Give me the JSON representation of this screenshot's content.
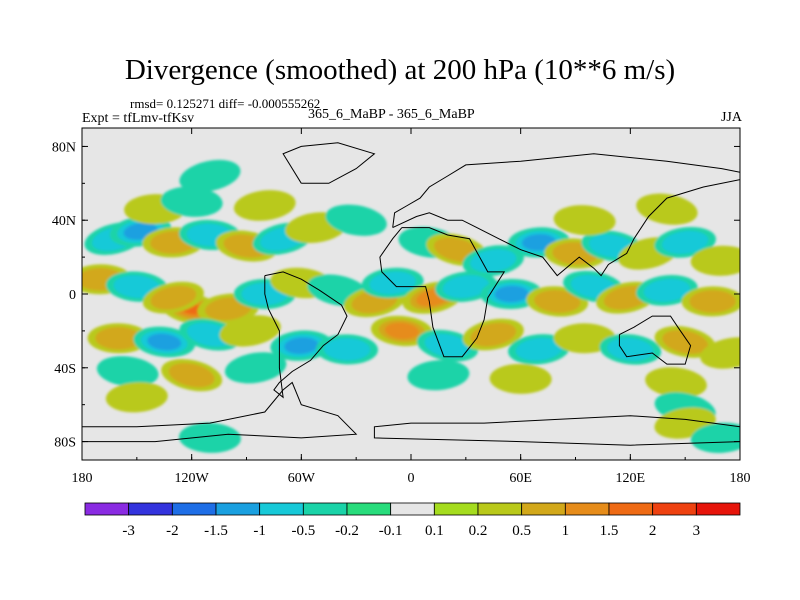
{
  "header": {
    "title": "Divergence (smoothed) at 200 hPa (10**6 m/s)",
    "stats": "rmsd= 0.125271 diff= -0.000555262",
    "experiment": "Expt = tfLmv-tfKsv",
    "cases": "365_6_MaBP - 365_6_MaBP",
    "season": "JJA"
  },
  "chart_data": {
    "type": "heatmap",
    "title": "Divergence (smoothed) at 200 hPa (10**6 m/s)",
    "projection": "cylindrical-equidistant",
    "xlim": [
      -180,
      180
    ],
    "ylim": [
      -90,
      90
    ],
    "x_ticks": [
      {
        "value": -180,
        "label": "180"
      },
      {
        "value": -120,
        "label": "120W"
      },
      {
        "value": -60,
        "label": "60W"
      },
      {
        "value": 0,
        "label": "0"
      },
      {
        "value": 60,
        "label": "60E"
      },
      {
        "value": 120,
        "label": "120E"
      },
      {
        "value": 180,
        "label": "180"
      }
    ],
    "y_ticks": [
      {
        "value": 80,
        "label": "80N"
      },
      {
        "value": 40,
        "label": "40N"
      },
      {
        "value": 0,
        "label": "0"
      },
      {
        "value": -40,
        "label": "40S"
      },
      {
        "value": -80,
        "label": "80S"
      }
    ],
    "colorbar": {
      "labels": [
        "-3",
        "-2",
        "-1.5",
        "-1",
        "-0.5",
        "-0.2",
        "-0.1",
        "0.1",
        "0.2",
        "0.5",
        "1",
        "1.5",
        "2",
        "3"
      ],
      "colors": [
        "#8a2be2",
        "#3333dd",
        "#1e6ee6",
        "#1aa0e0",
        "#17c9d8",
        "#1ad3a8",
        "#28dc7c",
        "#e6e6e6",
        "#a5dc1e",
        "#b9c91a",
        "#d2a81a",
        "#e68c1a",
        "#ee6a14",
        "#ee4110",
        "#e6140a"
      ]
    },
    "background_color": "#e6e6e6",
    "field_blobs": [
      {
        "lon": -162,
        "lat": 30,
        "value": -0.5
      },
      {
        "lon": -148,
        "lat": 34,
        "value": -1
      },
      {
        "lon": -130,
        "lat": 28,
        "value": 0.5
      },
      {
        "lon": -110,
        "lat": 32,
        "value": -0.5
      },
      {
        "lon": -90,
        "lat": 26,
        "value": 0.5
      },
      {
        "lon": -70,
        "lat": 30,
        "value": -0.5
      },
      {
        "lon": -52,
        "lat": 36,
        "value": 0.2
      },
      {
        "lon": -140,
        "lat": 46,
        "value": 0.2
      },
      {
        "lon": -120,
        "lat": 50,
        "value": -0.2
      },
      {
        "lon": -30,
        "lat": 40,
        "value": -0.2
      },
      {
        "lon": -110,
        "lat": 64,
        "value": -0.2
      },
      {
        "lon": -80,
        "lat": 48,
        "value": 0.2
      },
      {
        "lon": -170,
        "lat": 8,
        "value": 0.5
      },
      {
        "lon": -150,
        "lat": 4,
        "value": -0.5
      },
      {
        "lon": -120,
        "lat": -8,
        "value": 1.5
      },
      {
        "lon": -130,
        "lat": -2,
        "value": 0.5
      },
      {
        "lon": -100,
        "lat": -8,
        "value": 0.5
      },
      {
        "lon": -80,
        "lat": 0,
        "value": -0.5
      },
      {
        "lon": -60,
        "lat": 6,
        "value": 0.2
      },
      {
        "lon": -40,
        "lat": 2,
        "value": -0.2
      },
      {
        "lon": -20,
        "lat": -4,
        "value": 0.5
      },
      {
        "lon": -10,
        "lat": 6,
        "value": -0.5
      },
      {
        "lon": -160,
        "lat": -24,
        "value": 0.5
      },
      {
        "lon": -135,
        "lat": -26,
        "value": -1
      },
      {
        "lon": -110,
        "lat": -22,
        "value": -0.5
      },
      {
        "lon": -88,
        "lat": -20,
        "value": 0.2
      },
      {
        "lon": -60,
        "lat": -28,
        "value": -1
      },
      {
        "lon": -35,
        "lat": -30,
        "value": -0.5
      },
      {
        "lon": -155,
        "lat": -42,
        "value": -0.2
      },
      {
        "lon": -120,
        "lat": -44,
        "value": 0.5
      },
      {
        "lon": -85,
        "lat": -40,
        "value": -0.2
      },
      {
        "lon": -150,
        "lat": -56,
        "value": 0.2
      },
      {
        "lon": -110,
        "lat": -78,
        "value": -0.2
      },
      {
        "lon": 10,
        "lat": 28,
        "value": -0.2
      },
      {
        "lon": 25,
        "lat": 24,
        "value": 0.5
      },
      {
        "lon": 45,
        "lat": 18,
        "value": -0.5
      },
      {
        "lon": 70,
        "lat": 28,
        "value": -1
      },
      {
        "lon": 90,
        "lat": 22,
        "value": 0.5
      },
      {
        "lon": 110,
        "lat": 26,
        "value": -0.5
      },
      {
        "lon": 130,
        "lat": 22,
        "value": 0.2
      },
      {
        "lon": 150,
        "lat": 28,
        "value": -0.5
      },
      {
        "lon": 170,
        "lat": 18,
        "value": 0.2
      },
      {
        "lon": 95,
        "lat": 40,
        "value": 0.2
      },
      {
        "lon": 140,
        "lat": 46,
        "value": 0.2
      },
      {
        "lon": 12,
        "lat": -2,
        "value": 1
      },
      {
        "lon": 30,
        "lat": 4,
        "value": -0.5
      },
      {
        "lon": 55,
        "lat": 0,
        "value": -1
      },
      {
        "lon": 80,
        "lat": -4,
        "value": 0.5
      },
      {
        "lon": 100,
        "lat": 4,
        "value": -0.5
      },
      {
        "lon": 118,
        "lat": -2,
        "value": 0.5
      },
      {
        "lon": 140,
        "lat": 2,
        "value": -0.5
      },
      {
        "lon": 165,
        "lat": -4,
        "value": 0.5
      },
      {
        "lon": -5,
        "lat": -20,
        "value": 1
      },
      {
        "lon": 20,
        "lat": -28,
        "value": -0.5
      },
      {
        "lon": 45,
        "lat": -22,
        "value": 0.5
      },
      {
        "lon": 70,
        "lat": -30,
        "value": -0.5
      },
      {
        "lon": 95,
        "lat": -24,
        "value": 0.2
      },
      {
        "lon": 120,
        "lat": -30,
        "value": -0.5
      },
      {
        "lon": 150,
        "lat": -26,
        "value": 0.5
      },
      {
        "lon": 175,
        "lat": -32,
        "value": 0.2
      },
      {
        "lon": 15,
        "lat": -44,
        "value": -0.2
      },
      {
        "lon": 60,
        "lat": -46,
        "value": 0.2
      },
      {
        "lon": 145,
        "lat": -48,
        "value": 0.2
      },
      {
        "lon": 150,
        "lat": -62,
        "value": -0.2
      },
      {
        "lon": 150,
        "lat": -70,
        "value": 0.2
      },
      {
        "lon": 170,
        "lat": -78,
        "value": -0.2
      }
    ],
    "coastlines": [
      [
        [
          -180,
          -72
        ],
        [
          -150,
          -72
        ],
        [
          -110,
          -70
        ],
        [
          -80,
          -64
        ],
        [
          -70,
          -52
        ],
        [
          -65,
          -48
        ],
        [
          -60,
          -60
        ],
        [
          -40,
          -66
        ],
        [
          -30,
          -76
        ],
        [
          -60,
          -78
        ],
        [
          -100,
          -76
        ],
        [
          -140,
          -80
        ],
        [
          -180,
          -80
        ]
      ],
      [
        [
          -80,
          10
        ],
        [
          -70,
          12
        ],
        [
          -60,
          8
        ],
        [
          -50,
          2
        ],
        [
          -38,
          -6
        ],
        [
          -35,
          -12
        ],
        [
          -40,
          -22
        ],
        [
          -48,
          -28
        ],
        [
          -55,
          -36
        ],
        [
          -65,
          -42
        ],
        [
          -72,
          -48
        ],
        [
          -75,
          -52
        ],
        [
          -70,
          -56
        ],
        [
          -72,
          -40
        ],
        [
          -72,
          -20
        ],
        [
          -78,
          -8
        ],
        [
          -80,
          0
        ],
        [
          -80,
          10
        ]
      ],
      [
        [
          -5,
          36
        ],
        [
          10,
          36
        ],
        [
          20,
          32
        ],
        [
          32,
          30
        ],
        [
          42,
          12
        ],
        [
          51,
          12
        ],
        [
          42,
          -2
        ],
        [
          40,
          -14
        ],
        [
          36,
          -24
        ],
        [
          28,
          -34
        ],
        [
          18,
          -34
        ],
        [
          12,
          -18
        ],
        [
          10,
          -4
        ],
        [
          8,
          4
        ],
        [
          -8,
          4
        ],
        [
          -16,
          12
        ],
        [
          -17,
          20
        ],
        [
          -10,
          30
        ],
        [
          -5,
          36
        ]
      ],
      [
        [
          -10,
          36
        ],
        [
          -9,
          44
        ],
        [
          -2,
          48
        ],
        [
          5,
          52
        ],
        [
          10,
          58
        ],
        [
          20,
          64
        ],
        [
          30,
          70
        ],
        [
          60,
          72
        ],
        [
          100,
          76
        ],
        [
          140,
          72
        ],
        [
          170,
          68
        ],
        [
          180,
          66
        ],
        [
          180,
          62
        ],
        [
          160,
          58
        ],
        [
          140,
          52
        ],
        [
          130,
          42
        ],
        [
          122,
          30
        ],
        [
          118,
          22
        ],
        [
          108,
          16
        ],
        [
          104,
          10
        ],
        [
          100,
          14
        ],
        [
          92,
          20
        ],
        [
          80,
          10
        ],
        [
          72,
          20
        ],
        [
          60,
          24
        ],
        [
          56,
          26
        ],
        [
          48,
          30
        ],
        [
          36,
          36
        ],
        [
          28,
          40
        ],
        [
          20,
          40
        ],
        [
          10,
          44
        ],
        [
          3,
          42
        ],
        [
          -10,
          36
        ]
      ],
      [
        [
          114,
          -22
        ],
        [
          122,
          -18
        ],
        [
          132,
          -12
        ],
        [
          142,
          -12
        ],
        [
          146,
          -18
        ],
        [
          153,
          -28
        ],
        [
          150,
          -38
        ],
        [
          140,
          -38
        ],
        [
          132,
          -32
        ],
        [
          118,
          -34
        ],
        [
          114,
          -28
        ],
        [
          114,
          -22
        ]
      ],
      [
        [
          180,
          -72
        ],
        [
          150,
          -68
        ],
        [
          120,
          -66
        ],
        [
          80,
          -68
        ],
        [
          40,
          -70
        ],
        [
          0,
          -70
        ],
        [
          -20,
          -72
        ],
        [
          -20,
          -78
        ],
        [
          60,
          -80
        ],
        [
          120,
          -82
        ],
        [
          180,
          -80
        ]
      ],
      [
        [
          -60,
          60
        ],
        [
          -45,
          60
        ],
        [
          -30,
          68
        ],
        [
          -20,
          76
        ],
        [
          -40,
          82
        ],
        [
          -60,
          80
        ],
        [
          -70,
          76
        ],
        [
          -60,
          60
        ]
      ]
    ]
  }
}
